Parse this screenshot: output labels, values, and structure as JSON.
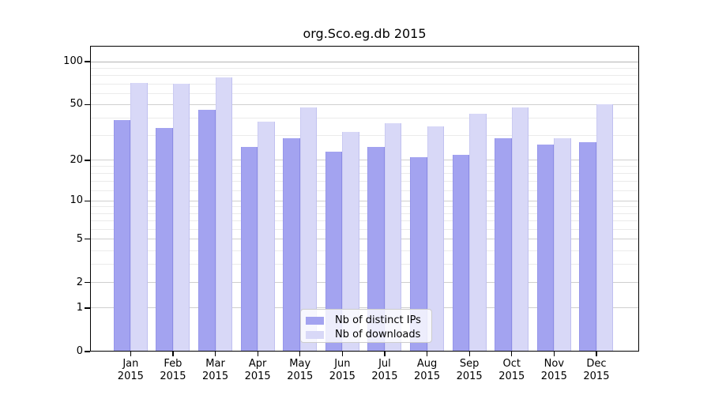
{
  "chart_data": {
    "type": "bar",
    "title": "org.Sco.eg.db 2015",
    "categories": [
      "Jan",
      "Feb",
      "Mar",
      "Apr",
      "May",
      "Jun",
      "Jul",
      "Aug",
      "Sep",
      "Oct",
      "Nov",
      "Dec"
    ],
    "category_year": "2015",
    "series": [
      {
        "name": "Nb of distinct IPs",
        "color": "#a3a3f0",
        "values": [
          39,
          34,
          46,
          25,
          29,
          23,
          25,
          21,
          22,
          29,
          26,
          27
        ]
      },
      {
        "name": "Nb of downloads",
        "color": "#d8d8f7",
        "values": [
          71,
          70,
          78,
          38,
          48,
          32,
          37,
          35,
          43,
          48,
          29,
          50
        ]
      }
    ],
    "xlabel": "",
    "ylabel": "",
    "y_scale": "log1p",
    "y_ticks": [
      0,
      1,
      2,
      5,
      10,
      20,
      50,
      100
    ],
    "y_minor_ticks": [
      3,
      4,
      6,
      7,
      8,
      9,
      12,
      14,
      16,
      18,
      30,
      40,
      60,
      70,
      80,
      90
    ],
    "ylim": [
      0,
      130
    ],
    "grid": true,
    "legend_position": "lower center"
  },
  "colors": {
    "grid_major": "#cfcfcf",
    "grid_top": "#b4b4b4",
    "grid_minor": "#ebebeb",
    "axis": "#000000",
    "legend_border": "#cccccc",
    "legend_bg": "rgba(255,255,255,0.8)"
  }
}
